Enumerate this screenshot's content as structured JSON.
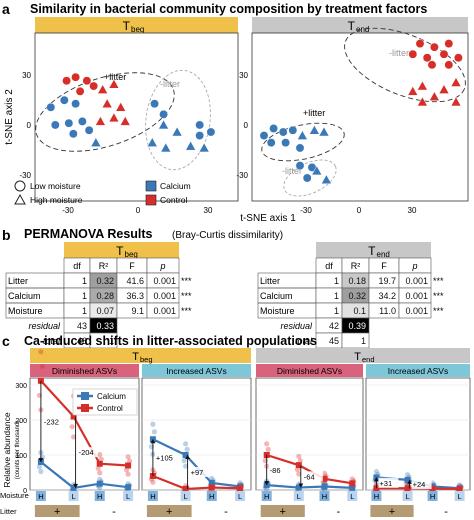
{
  "panel_a": {
    "letter": "a",
    "title": "Similarity in bacterial community composition by treatment factors",
    "xlabel": "t-SNE axis 1",
    "ylabel": "t-SNE axis 2",
    "facet_left": "T",
    "facet_left_sub": "beg",
    "facet_right": "T",
    "facet_right_sub": "end",
    "x_ticks": [
      "-30",
      "0",
      "30"
    ],
    "y_ticks": [
      "30",
      "0",
      "-30"
    ],
    "annotations": {
      "plus_litter": "+litter",
      "minus_litter": "-litter"
    },
    "legend": {
      "low_moisture": "Low moisture",
      "high_moisture": "High moisture",
      "calcium": "Calcium",
      "control": "Control"
    },
    "colors": {
      "calcium": "#3a78b8",
      "control": "#d62f2a",
      "beg_strip": "#efc04a",
      "end_strip": "#c7c7c7"
    }
  },
  "panel_b": {
    "letter": "b",
    "title": "PERMANOVA Results",
    "subtitle": "(Bray-Curtis dissimilarity)",
    "headers": [
      "df",
      "R²",
      "F",
      "p"
    ],
    "left": {
      "facet": "T",
      "facet_sub": "beg",
      "rows": [
        {
          "label": "Litter",
          "df": "1",
          "r2": "0.32",
          "f": "41.6",
          "p": "0.001",
          "sig": "***"
        },
        {
          "label": "Calcium",
          "df": "1",
          "r2": "0.28",
          "f": "36.3",
          "p": "0.001",
          "sig": "***"
        },
        {
          "label": "Moisture",
          "df": "1",
          "r2": "0.07",
          "f": "9.1",
          "p": "0.001",
          "sig": "***"
        },
        {
          "label": "residual",
          "df": "43",
          "r2": "0.33",
          "f": "",
          "p": "",
          "sig": ""
        },
        {
          "label": "total",
          "df": "46",
          "r2": "1",
          "f": "",
          "p": "",
          "sig": ""
        }
      ]
    },
    "right": {
      "facet": "T",
      "facet_sub": "end",
      "rows": [
        {
          "label": "Litter",
          "df": "1",
          "r2": "0.18",
          "f": "19.7",
          "p": "0.001",
          "sig": "***"
        },
        {
          "label": "Calcium",
          "df": "1",
          "r2": "0.32",
          "f": "34.2",
          "p": "0.001",
          "sig": "***"
        },
        {
          "label": "Moisture",
          "df": "1",
          "r2": "0.1",
          "f": "11.0",
          "p": "0.001",
          "sig": "***"
        },
        {
          "label": "residual",
          "df": "42",
          "r2": "0.39",
          "f": "",
          "p": "",
          "sig": ""
        },
        {
          "label": "total",
          "df": "45",
          "r2": "1",
          "f": "",
          "p": "",
          "sig": ""
        }
      ]
    }
  },
  "panel_c": {
    "letter": "c",
    "title": "Ca-induced shifts in litter-associated populations",
    "facet_left": "T",
    "facet_left_sub": "beg",
    "facet_right": "T",
    "facet_right_sub": "end",
    "sub_diminished": "Diminished ASVs",
    "sub_increased": "Increased ASVs",
    "ylabel": "Relative abundance",
    "ylabel_sub": "(counts per thousand)",
    "y_ticks": [
      "300",
      "200",
      "100",
      "0"
    ],
    "legend": {
      "calcium": "Calcium",
      "control": "Control"
    },
    "moisture_label": "Moisture",
    "litter_label": "Litter",
    "moisture_ticks": [
      "H",
      "L"
    ],
    "litter_plus": "+",
    "litter_minus": "-",
    "colors": {
      "calcium": "#3a78b8",
      "control": "#d62f2a",
      "dim_strip": "#d9637d",
      "inc_strip": "#7dc7d9"
    }
  },
  "chart_data": [
    {
      "type": "scatter",
      "title": "Similarity in bacterial community composition by treatment factors",
      "facet": "Tbeg",
      "xlabel": "t-SNE axis 1",
      "ylabel": "t-SNE axis 2",
      "xlim": [
        -45,
        45
      ],
      "ylim": [
        -45,
        50
      ],
      "series": [
        {
          "name": "Calcium",
          "marker": "circle",
          "points": [
            [
              -38,
              8
            ],
            [
              -32,
              12
            ],
            [
              -27,
              10
            ],
            [
              -36,
              -2
            ],
            [
              -30,
              -1
            ],
            [
              -24,
              0
            ],
            [
              -28,
              -7
            ],
            [
              -21,
              -5
            ],
            [
              8,
              10
            ],
            [
              12,
              4
            ],
            [
              28,
              -2
            ],
            [
              33,
              -6
            ],
            [
              28,
              -8
            ]
          ]
        },
        {
          "name": "Calcium",
          "marker": "triangle",
          "points": [
            [
              -18,
              -12
            ],
            [
              12,
              -2
            ],
            [
              18,
              -6
            ],
            [
              7,
              -12
            ],
            [
              13,
              -15
            ],
            [
              24,
              -14
            ],
            [
              30,
              -15
            ]
          ]
        },
        {
          "name": "Control",
          "marker": "circle",
          "points": [
            [
              -31,
              23
            ],
            [
              -27,
              25
            ],
            [
              -22,
              23
            ],
            [
              -19,
              20
            ],
            [
              -25,
              17
            ]
          ]
        },
        {
          "name": "Control",
          "marker": "triangle",
          "points": [
            [
              -15,
              18
            ],
            [
              -10,
              21
            ],
            [
              -13,
              10
            ],
            [
              -7,
              8
            ],
            [
              -16,
              0
            ],
            [
              -10,
              2
            ],
            [
              -5,
              0
            ]
          ]
        }
      ]
    },
    {
      "type": "scatter",
      "facet": "Tend",
      "xlabel": "t-SNE axis 1",
      "ylabel": "t-SNE axis 2",
      "xlim": [
        -45,
        45
      ],
      "ylim": [
        -45,
        50
      ],
      "series": [
        {
          "name": "Calcium",
          "marker": "circle",
          "points": [
            [
              -40,
              -8
            ],
            [
              -36,
              -4
            ],
            [
              -32,
              -6
            ],
            [
              -28,
              -5
            ],
            [
              -37,
              -12
            ],
            [
              -31,
              -12
            ],
            [
              -25,
              -15
            ],
            [
              -25,
              -25
            ],
            [
              -20,
              -26
            ],
            [
              -22,
              -32
            ]
          ]
        },
        {
          "name": "Calcium",
          "marker": "triangle",
          "points": [
            [
              -24,
              -8
            ],
            [
              -19,
              -5
            ],
            [
              -15,
              -6
            ],
            [
              -18,
              -28
            ],
            [
              -14,
              -33
            ]
          ]
        },
        {
          "name": "Control",
          "marker": "circle",
          "points": [
            [
              25,
              44
            ],
            [
              31,
              42
            ],
            [
              37,
              44
            ],
            [
              22,
              38
            ],
            [
              28,
              36
            ],
            [
              35,
              38
            ],
            [
              41,
              36
            ],
            [
              30,
              32
            ],
            [
              37,
              32
            ]
          ]
        },
        {
          "name": "Control",
          "marker": "triangle",
          "points": [
            [
              22,
              17
            ],
            [
              26,
              20
            ],
            [
              31,
              14
            ],
            [
              26,
              11
            ],
            [
              35,
              18
            ],
            [
              40,
              22
            ],
            [
              40,
              11
            ]
          ]
        }
      ]
    },
    {
      "type": "line",
      "facet": "Tbeg",
      "subtitle": "Diminished ASVs",
      "x": [
        "H +",
        "L +",
        "H -",
        "L -"
      ],
      "ylabel": "Relative abundance (counts per thousand)",
      "ylim": [
        0,
        320
      ],
      "series": [
        {
          "name": "Calcium",
          "values": [
            80,
            6,
            18,
            8
          ]
        },
        {
          "name": "Control",
          "values": [
            312,
            210,
            75,
            70
          ]
        }
      ],
      "annotations": [
        "-232",
        "-204"
      ]
    },
    {
      "type": "line",
      "facet": "Tbeg",
      "subtitle": "Increased ASVs",
      "x": [
        "H +",
        "L +",
        "H -",
        "L -"
      ],
      "ylim": [
        0,
        320
      ],
      "series": [
        {
          "name": "Calcium",
          "values": [
            145,
            100,
            20,
            10
          ]
        },
        {
          "name": "Control",
          "values": [
            40,
            3,
            7,
            5
          ]
        }
      ],
      "annotations": [
        "+105",
        "+97"
      ]
    },
    {
      "type": "line",
      "facet": "Tend",
      "subtitle": "Diminished ASVs",
      "x": [
        "H +",
        "L +",
        "H -",
        "L -"
      ],
      "ylim": [
        0,
        320
      ],
      "series": [
        {
          "name": "Calcium",
          "values": [
            14,
            7,
            10,
            6
          ]
        },
        {
          "name": "Control",
          "values": [
            100,
            71,
            32,
            19
          ]
        }
      ],
      "annotations": [
        "-86",
        "-64"
      ]
    },
    {
      "type": "line",
      "facet": "Tend",
      "subtitle": "Increased ASVs",
      "x": [
        "H +",
        "L +",
        "H -",
        "L -"
      ],
      "ylim": [
        0,
        320
      ],
      "series": [
        {
          "name": "Calcium",
          "values": [
            36,
            29,
            10,
            5
          ]
        },
        {
          "name": "Control",
          "values": [
            5,
            5,
            4,
            3
          ]
        }
      ],
      "annotations": [
        "+31",
        "+24"
      ]
    }
  ]
}
